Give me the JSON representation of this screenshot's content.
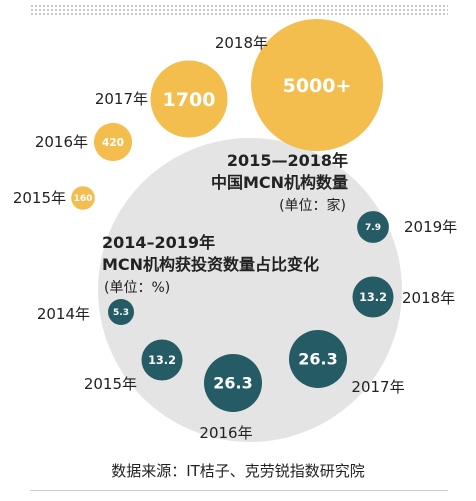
{
  "source": "数据来源：IT桔子、克劳锐指数研究院",
  "colors": {
    "orange": "#f3b941",
    "teal": "#245b65",
    "big_circle": "#e4e4e4",
    "text": "#222222"
  },
  "chart_data": [
    {
      "type": "bubble",
      "title": "2015—2018年",
      "subtitle": "中国MCN机构数量",
      "unit": "(单位：家)",
      "points": [
        {
          "year": "2015年",
          "value": 160,
          "label": "160"
        },
        {
          "year": "2016年",
          "value": 420,
          "label": "420"
        },
        {
          "year": "2017年",
          "value": 1700,
          "label": "1700"
        },
        {
          "year": "2018年",
          "value": 5000,
          "label": "5000+"
        }
      ]
    },
    {
      "type": "bubble",
      "title": "2014–2019年",
      "subtitle": "MCN机构获投资数量占比变化",
      "unit": "(单位：%)",
      "points": [
        {
          "year": "2014年",
          "value": 5.3,
          "label": "5.3"
        },
        {
          "year": "2015年",
          "value": 13.2,
          "label": "13.2"
        },
        {
          "year": "2016年",
          "value": 26.3,
          "label": "26.3"
        },
        {
          "year": "2017年",
          "value": 26.3,
          "label": "26.3"
        },
        {
          "year": "2018年",
          "value": 13.2,
          "label": "13.2"
        },
        {
          "year": "2019年",
          "value": 7.9,
          "label": "7.9"
        }
      ]
    }
  ]
}
